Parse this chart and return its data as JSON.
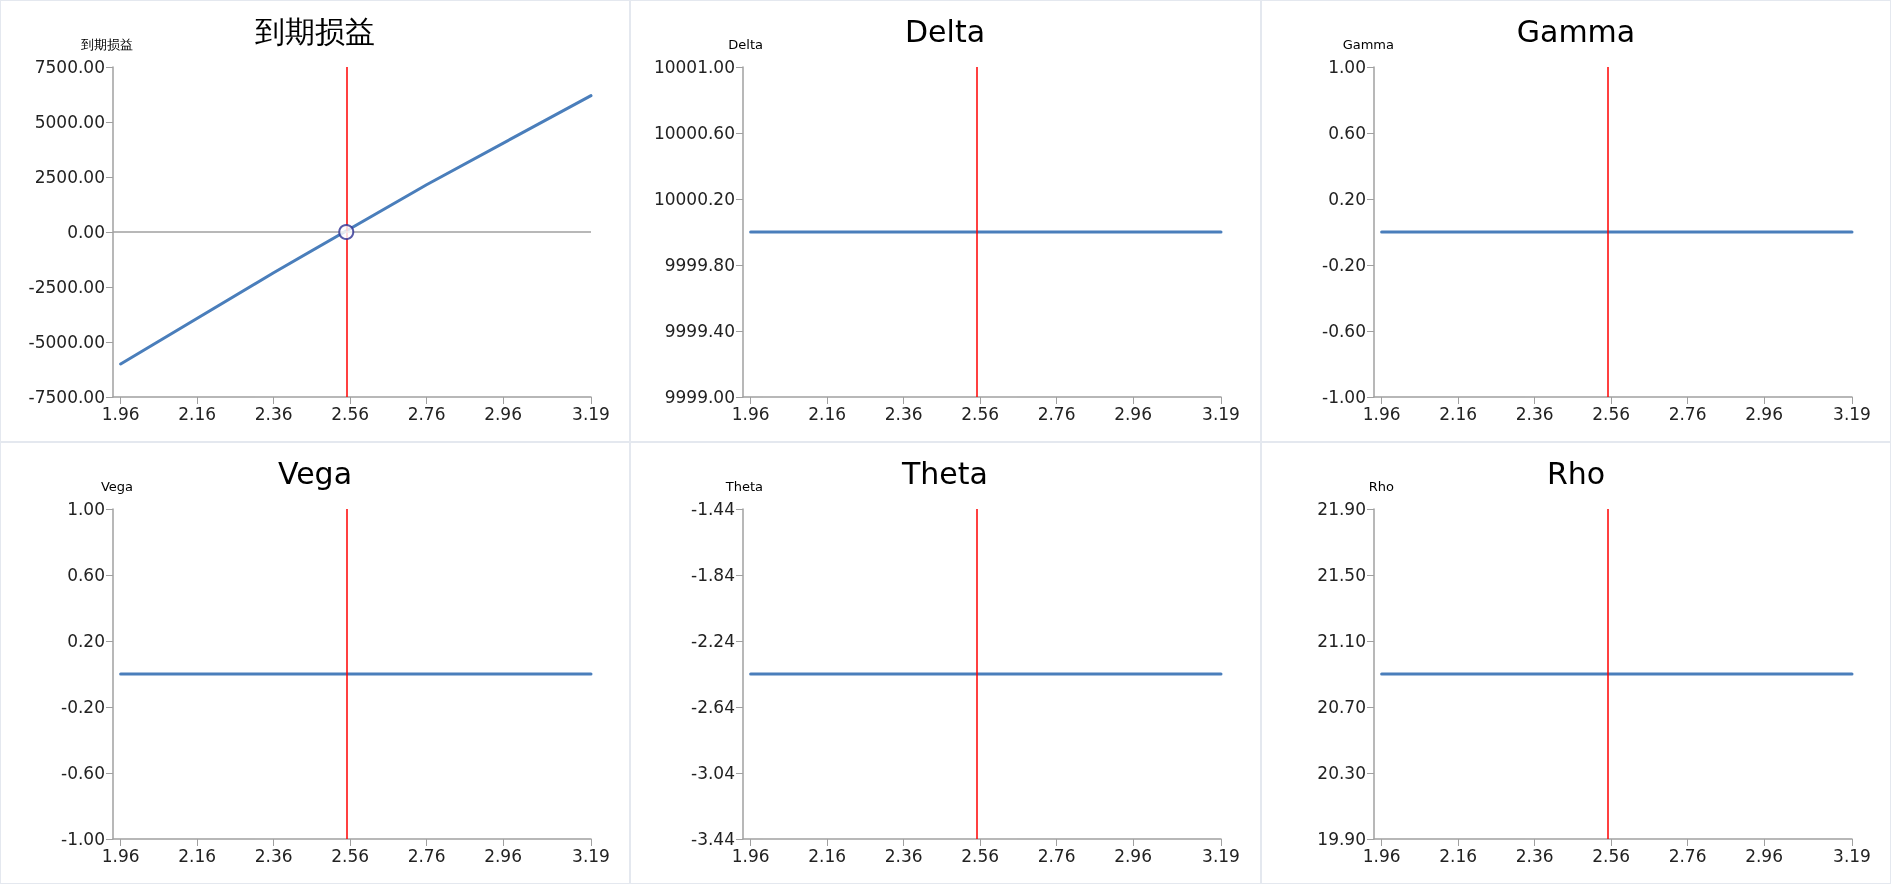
{
  "chart_data": [
    {
      "type": "line",
      "title": "到期损益",
      "ylabel": "到期损益",
      "xlim": [
        1.94,
        3.19
      ],
      "xticks": [
        1.96,
        2.16,
        2.36,
        2.56,
        2.76,
        2.96,
        3.19
      ],
      "ylim": [
        -7500,
        7500
      ],
      "yticks": [
        {
          "value": -7500,
          "label": "-7500.00"
        },
        {
          "value": -5000,
          "label": "-5000.00"
        },
        {
          "value": -2500,
          "label": "-2500.00"
        },
        {
          "value": 0,
          "label": "0.00"
        },
        {
          "value": 2500,
          "label": "2500.00"
        },
        {
          "value": 5000,
          "label": "5000.00"
        },
        {
          "value": 7500,
          "label": "7500.00"
        }
      ],
      "grid": false,
      "marker": "none",
      "series": [
        {
          "color": "#4a7ebb",
          "x": [
            1.96,
            2.36,
            2.76,
            3.19
          ],
          "values": [
            -6000,
            -1850,
            2150,
            6200
          ]
        },
        {
          "type": "scatter",
          "marker": "circle",
          "color": "#2e3192",
          "x": [
            2.55
          ],
          "values": [
            0
          ]
        }
      ],
      "ref_lines": [
        {
          "axis": "x",
          "value": 2.55,
          "color": "#ff0000"
        },
        {
          "axis": "y",
          "value": 0,
          "color": "#a0a0a0"
        }
      ]
    },
    {
      "type": "line",
      "title": "Delta",
      "ylabel": "Delta",
      "xlim": [
        1.94,
        3.19
      ],
      "xticks": [
        1.96,
        2.16,
        2.36,
        2.56,
        2.76,
        2.96,
        3.19
      ],
      "ylim": [
        9999,
        10001
      ],
      "yticks": [
        {
          "value": 9999,
          "label": "9999.00"
        },
        {
          "value": 9999.4,
          "label": "9999.40"
        },
        {
          "value": 9999.8,
          "label": "9999.80"
        },
        {
          "value": 10000.2,
          "label": "10000.20"
        },
        {
          "value": 10000.6,
          "label": "10000.60"
        },
        {
          "value": 10001,
          "label": "10001.00"
        }
      ],
      "grid": false,
      "marker": "none",
      "series": [
        {
          "color": "#4a7ebb",
          "x": [
            1.96,
            3.19
          ],
          "values": [
            10000,
            10000
          ]
        }
      ],
      "ref_lines": [
        {
          "axis": "x",
          "value": 2.55,
          "color": "#ff0000"
        }
      ]
    },
    {
      "type": "line",
      "title": "Gamma",
      "ylabel": "Gamma",
      "xlim": [
        1.94,
        3.19
      ],
      "xticks": [
        1.96,
        2.16,
        2.36,
        2.56,
        2.76,
        2.96,
        3.19
      ],
      "ylim": [
        -1,
        1
      ],
      "yticks": [
        {
          "value": -1,
          "label": "-1.00"
        },
        {
          "value": -0.6,
          "label": "-0.60"
        },
        {
          "value": -0.2,
          "label": "-0.20"
        },
        {
          "value": 0.2,
          "label": "0.20"
        },
        {
          "value": 0.6,
          "label": "0.60"
        },
        {
          "value": 1,
          "label": "1.00"
        }
      ],
      "grid": false,
      "marker": "none",
      "series": [
        {
          "color": "#4a7ebb",
          "x": [
            1.96,
            3.19
          ],
          "values": [
            0,
            0
          ]
        }
      ],
      "ref_lines": [
        {
          "axis": "x",
          "value": 2.55,
          "color": "#ff0000"
        }
      ]
    },
    {
      "type": "line",
      "title": "Vega",
      "ylabel": "Vega",
      "xlim": [
        1.94,
        3.19
      ],
      "xticks": [
        1.96,
        2.16,
        2.36,
        2.56,
        2.76,
        2.96,
        3.19
      ],
      "ylim": [
        -1,
        1
      ],
      "yticks": [
        {
          "value": -1,
          "label": "-1.00"
        },
        {
          "value": -0.6,
          "label": "-0.60"
        },
        {
          "value": -0.2,
          "label": "-0.20"
        },
        {
          "value": 0.2,
          "label": "0.20"
        },
        {
          "value": 0.6,
          "label": "0.60"
        },
        {
          "value": 1,
          "label": "1.00"
        }
      ],
      "grid": false,
      "marker": "none",
      "series": [
        {
          "color": "#4a7ebb",
          "x": [
            1.96,
            3.19
          ],
          "values": [
            0,
            0
          ]
        }
      ],
      "ref_lines": [
        {
          "axis": "x",
          "value": 2.55,
          "color": "#ff0000"
        }
      ]
    },
    {
      "type": "line",
      "title": "Theta",
      "ylabel": "Theta",
      "xlim": [
        1.94,
        3.19
      ],
      "xticks": [
        1.96,
        2.16,
        2.36,
        2.56,
        2.76,
        2.96,
        3.19
      ],
      "ylim": [
        -3.44,
        -1.44
      ],
      "yticks": [
        {
          "value": -3.44,
          "label": "-3.44"
        },
        {
          "value": -3.04,
          "label": "-3.04"
        },
        {
          "value": -2.64,
          "label": "-2.64"
        },
        {
          "value": -2.24,
          "label": "-2.24"
        },
        {
          "value": -1.84,
          "label": "-1.84"
        },
        {
          "value": -1.44,
          "label": "-1.44"
        }
      ],
      "grid": false,
      "marker": "none",
      "series": [
        {
          "color": "#4a7ebb",
          "x": [
            1.96,
            3.19
          ],
          "values": [
            -2.44,
            -2.44
          ]
        }
      ],
      "ref_lines": [
        {
          "axis": "x",
          "value": 2.55,
          "color": "#ff0000"
        }
      ]
    },
    {
      "type": "line",
      "title": "Rho",
      "ylabel": "Rho",
      "xlim": [
        1.94,
        3.19
      ],
      "xticks": [
        1.96,
        2.16,
        2.36,
        2.56,
        2.76,
        2.96,
        3.19
      ],
      "ylim": [
        19.9,
        21.9
      ],
      "yticks": [
        {
          "value": 19.9,
          "label": "19.90"
        },
        {
          "value": 20.3,
          "label": "20.30"
        },
        {
          "value": 20.7,
          "label": "20.70"
        },
        {
          "value": 21.1,
          "label": "21.10"
        },
        {
          "value": 21.5,
          "label": "21.50"
        },
        {
          "value": 21.9,
          "label": "21.90"
        }
      ],
      "grid": false,
      "marker": "none",
      "series": [
        {
          "color": "#4a7ebb",
          "x": [
            1.96,
            3.19
          ],
          "values": [
            20.9,
            20.9
          ]
        }
      ],
      "ref_lines": [
        {
          "axis": "x",
          "value": 2.55,
          "color": "#ff0000"
        }
      ]
    }
  ]
}
